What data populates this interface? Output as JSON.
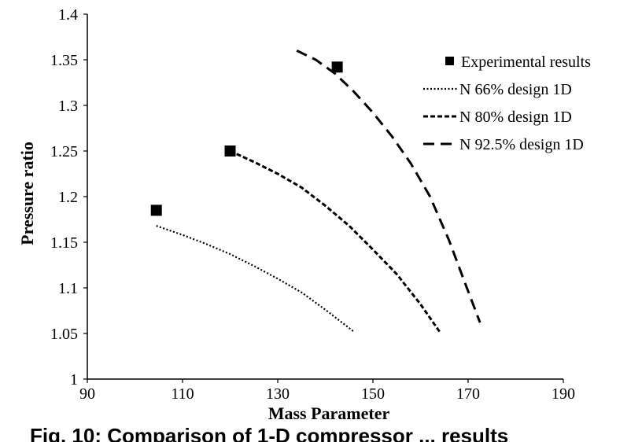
{
  "chart_data": {
    "type": "line",
    "xlabel": "Mass Parameter",
    "ylabel": "Pressure ratio",
    "xlim": [
      90,
      190
    ],
    "ylim": [
      1,
      1.4
    ],
    "xticks": [
      "90",
      "110",
      "130",
      "150",
      "170",
      "190"
    ],
    "yticks": [
      "1",
      "1.05",
      "1.1",
      "1.15",
      "1.2",
      "1.25",
      "1.3",
      "1.35",
      "1.4"
    ],
    "grid": false,
    "legend_position": "top-right",
    "caption": "Fig. 10: Comparison of 1-D compressor ... results",
    "series": [
      {
        "name": "Experimental results",
        "kind": "scatter",
        "style": "square-marker",
        "x": [
          104.5,
          120,
          142.5
        ],
        "y": [
          1.185,
          1.25,
          1.342
        ]
      },
      {
        "name": "N 66% design 1D",
        "kind": "line",
        "style": "dotted",
        "x": [
          104.5,
          110,
          115,
          120,
          125,
          130,
          135,
          140,
          146
        ],
        "y": [
          1.168,
          1.158,
          1.148,
          1.137,
          1.124,
          1.11,
          1.095,
          1.076,
          1.052
        ]
      },
      {
        "name": "N 80% design 1D",
        "kind": "line",
        "style": "short-dash",
        "x": [
          120,
          125,
          130,
          135,
          140,
          145,
          150,
          155,
          160,
          164
        ],
        "y": [
          1.25,
          1.238,
          1.225,
          1.21,
          1.19,
          1.168,
          1.142,
          1.115,
          1.082,
          1.052
        ]
      },
      {
        "name": "N 92.5% design 1D",
        "kind": "line",
        "style": "long-dash",
        "x": [
          134,
          138,
          142,
          146,
          150,
          154,
          158,
          162,
          166,
          169,
          172.5
        ],
        "y": [
          1.36,
          1.35,
          1.335,
          1.315,
          1.292,
          1.266,
          1.236,
          1.2,
          1.152,
          1.11,
          1.062
        ]
      }
    ]
  }
}
